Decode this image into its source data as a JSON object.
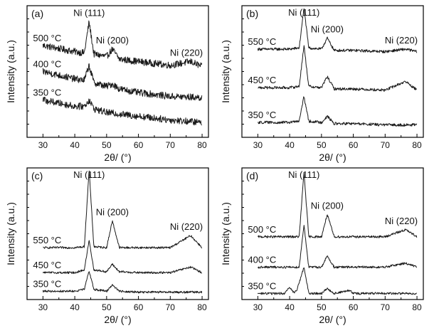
{
  "chart_data": [
    {
      "type": "line",
      "panel": "(a)",
      "xlabel": "2θ/ (°)",
      "ylabel": "Intensity (a.u.)",
      "xlim": [
        25,
        82
      ],
      "xticks": [
        "30",
        "40",
        "50",
        "60",
        "70",
        "80"
      ],
      "peaks": [
        {
          "label": "Ni (111)",
          "x": 44.5
        },
        {
          "label": "Ni (200)",
          "x": 51.8
        },
        {
          "label": "Ni (220)",
          "x": 76.4
        }
      ],
      "series": [
        {
          "name": "500 °C",
          "x": [
            30,
            40,
            43,
            44.5,
            46,
            50,
            51.8,
            54,
            60,
            70,
            76.4,
            80
          ],
          "y": [
            7.4,
            6.9,
            6.8,
            9.3,
            6.7,
            6.5,
            7.1,
            6.3,
            6.1,
            5.8,
            6.1,
            5.7
          ]
        },
        {
          "name": "400 °C",
          "x": [
            30,
            40,
            43,
            44.5,
            46,
            50,
            51.8,
            54,
            60,
            70,
            80
          ],
          "y": [
            5.3,
            4.7,
            4.6,
            5.8,
            4.4,
            4.1,
            4.3,
            3.9,
            3.6,
            3.3,
            3.2
          ]
        },
        {
          "name": "350 °C",
          "x": [
            30,
            40,
            43,
            44.5,
            46,
            50,
            60,
            70,
            80
          ],
          "y": [
            3.0,
            2.5,
            2.5,
            3.0,
            2.3,
            2.0,
            1.7,
            1.4,
            1.2
          ]
        }
      ]
    },
    {
      "type": "line",
      "panel": "(b)",
      "xlabel": "2θ/ (°)",
      "ylabel": "Intensity (a.u.)",
      "xlim": [
        25,
        82
      ],
      "xticks": [
        "30",
        "40",
        "50",
        "60",
        "70",
        "80"
      ],
      "peaks": [
        {
          "label": "Ni (111)",
          "x": 44.5
        },
        {
          "label": "Ni (200)",
          "x": 51.8
        },
        {
          "label": "Ni (220)",
          "x": 76.4
        }
      ],
      "series": [
        {
          "name": "550 °C",
          "x": [
            30,
            40,
            43,
            44.5,
            46,
            50,
            51.8,
            54,
            60,
            70,
            76.4,
            80
          ],
          "y": [
            7.1,
            7.1,
            7.2,
            10.4,
            7.2,
            7.1,
            8.0,
            7.0,
            7.0,
            6.9,
            7.1,
            6.9
          ]
        },
        {
          "name": "450 °C",
          "x": [
            30,
            40,
            43,
            44.5,
            46,
            50,
            51.8,
            54,
            60,
            70,
            76.4,
            80
          ],
          "y": [
            4.0,
            4.0,
            4.1,
            7.4,
            4.1,
            4.0,
            4.9,
            3.9,
            3.9,
            3.8,
            4.5,
            3.8
          ]
        },
        {
          "name": "350 °C",
          "x": [
            30,
            40,
            43,
            44.5,
            46,
            50,
            51.8,
            54,
            60,
            70,
            80
          ],
          "y": [
            1.2,
            1.2,
            1.3,
            3.3,
            1.3,
            1.2,
            1.7,
            1.1,
            1.1,
            1.0,
            1.0
          ]
        }
      ]
    },
    {
      "type": "line",
      "panel": "(c)",
      "xlabel": "2θ/ (°)",
      "ylabel": "Intensity (a.u.)",
      "xlim": [
        25,
        82
      ],
      "xticks": [
        "30",
        "40",
        "50",
        "60",
        "70",
        "80"
      ],
      "peaks": [
        {
          "label": "Ni (111)",
          "x": 44.5
        },
        {
          "label": "Ni (200)",
          "x": 51.8
        },
        {
          "label": "Ni (220)",
          "x": 76.4
        }
      ],
      "series": [
        {
          "name": "550 °C",
          "x": [
            30,
            40,
            43,
            44.5,
            46,
            50,
            51.8,
            54,
            60,
            70,
            76.4,
            80
          ],
          "y": [
            5.6,
            5.6,
            5.7,
            14.0,
            5.7,
            5.6,
            8.5,
            5.6,
            5.6,
            5.6,
            6.9,
            5.6
          ]
        },
        {
          "name": "450 °C",
          "x": [
            30,
            40,
            43,
            44.5,
            46,
            50,
            51.8,
            54,
            60,
            70,
            76.4,
            80
          ],
          "y": [
            2.9,
            2.9,
            3.2,
            6.4,
            3.2,
            3.0,
            3.8,
            3.0,
            2.9,
            2.9,
            3.5,
            2.9
          ]
        },
        {
          "name": "350 °C",
          "x": [
            30,
            40,
            43,
            44.5,
            46,
            50,
            51.8,
            54,
            60,
            70,
            80
          ],
          "y": [
            0.9,
            0.9,
            1.1,
            3.1,
            1.1,
            0.9,
            1.6,
            0.9,
            0.8,
            0.8,
            0.8
          ]
        }
      ]
    },
    {
      "type": "line",
      "panel": "(d)",
      "xlabel": "2θ/ (°)",
      "ylabel": "Intensity (a.u.)",
      "xlim": [
        25,
        82
      ],
      "xticks": [
        "30",
        "40",
        "50",
        "60",
        "70",
        "80"
      ],
      "peaks": [
        {
          "label": "Ni (111)",
          "x": 44.5
        },
        {
          "label": "Ni (200)",
          "x": 51.8
        },
        {
          "label": "Ni (220)",
          "x": 76.4
        }
      ],
      "series": [
        {
          "name": "500 °C",
          "x": [
            30,
            40,
            43,
            44.5,
            46,
            50,
            51.8,
            54,
            60,
            70,
            76.4,
            80
          ],
          "y": [
            6.2,
            6.2,
            6.2,
            12.6,
            6.2,
            6.2,
            8.4,
            6.2,
            6.2,
            6.2,
            6.9,
            6.2
          ]
        },
        {
          "name": "400 °C",
          "x": [
            30,
            40,
            43,
            44.5,
            46,
            50,
            51.8,
            54,
            60,
            70,
            76.4,
            80
          ],
          "y": [
            3.2,
            3.2,
            3.2,
            7.4,
            3.2,
            3.2,
            4.3,
            3.2,
            3.2,
            3.2,
            3.6,
            3.2
          ]
        },
        {
          "name": "350 °C",
          "x": [
            30,
            38.5,
            40,
            41.5,
            42.3,
            44.5,
            46,
            50,
            51.8,
            54,
            59,
            60,
            70,
            80
          ],
          "y": [
            0.6,
            0.6,
            1.2,
            0.6,
            1.0,
            3.2,
            0.6,
            0.6,
            1.1,
            0.6,
            0.9,
            0.6,
            0.6,
            0.6
          ]
        }
      ]
    }
  ]
}
